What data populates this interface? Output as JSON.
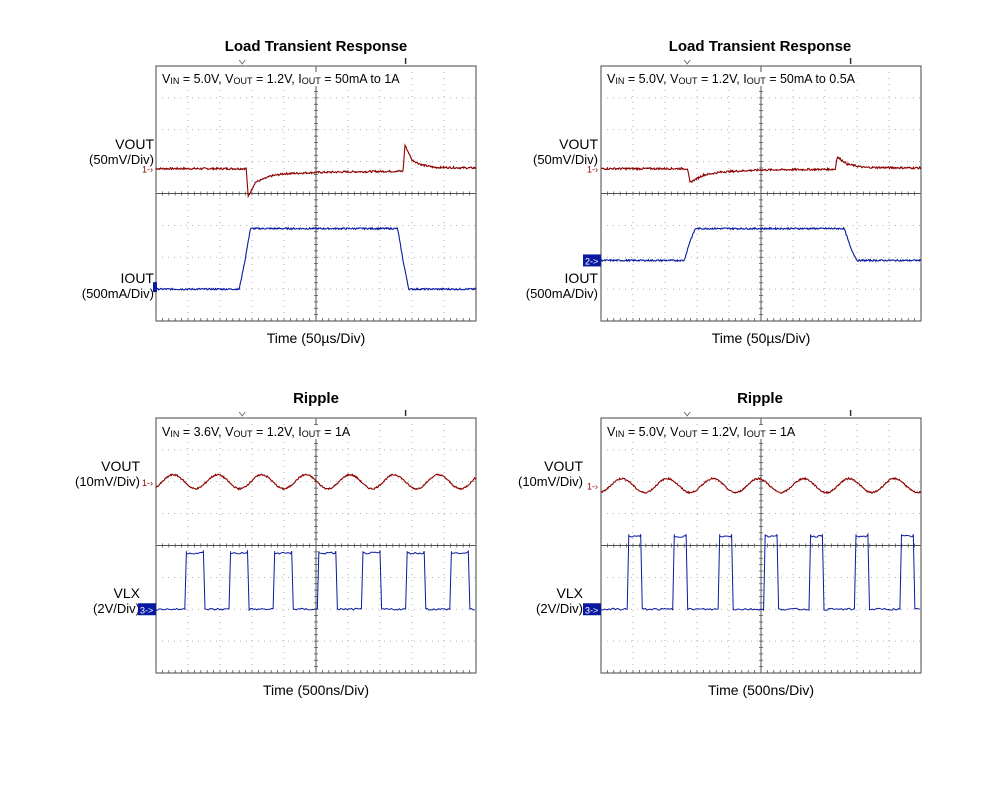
{
  "chart_data": [
    {
      "type": "line",
      "title": "Load Transient Response",
      "xlabel": "Time (50µs/Div)",
      "conditions": {
        "vin": "5.0V",
        "vout": "1.2V",
        "iout": "50mA to 1A"
      },
      "channels": [
        {
          "name": "VOUT",
          "scale": "(50mV/Div)",
          "marker": "1",
          "color": "#8b0000"
        },
        {
          "name": "IOUT",
          "scale": "(500mA/Div)",
          "marker": "",
          "color": "#0a1aa0"
        }
      ],
      "series": [
        {
          "name": "VOUT",
          "channel": 0,
          "x": [
            0,
            2.7,
            2.82,
            2.88,
            3.1,
            3.6,
            4,
            5,
            6,
            7.6,
            7.72,
            7.78,
            8.0,
            8.3,
            8.7,
            10
          ],
          "y": [
            4.78,
            4.78,
            4.78,
            3.9,
            4.35,
            4.55,
            4.62,
            4.66,
            4.68,
            4.7,
            4.7,
            5.52,
            5.05,
            4.9,
            4.82,
            4.8
          ]
        },
        {
          "name": "IOUT",
          "channel": 1,
          "x": [
            0,
            2.6,
            2.78,
            2.95,
            7.55,
            7.72,
            7.9,
            10
          ],
          "y": [
            1.0,
            1.0,
            1.9,
            2.9,
            2.9,
            1.9,
            1.0,
            1.0
          ]
        }
      ]
    },
    {
      "type": "line",
      "title": "Load Transient Response",
      "xlabel": "Time (50µs/Div)",
      "conditions": {
        "vin": "5.0V",
        "vout": "1.2V",
        "iout": "50mA to 0.5A"
      },
      "channels": [
        {
          "name": "VOUT",
          "scale": "(50mV/Div)",
          "marker": "1",
          "color": "#8b0000"
        },
        {
          "name": "IOUT",
          "scale": "(500mA/Div)",
          "marker": "2",
          "color": "#0a1aa0"
        }
      ],
      "series": [
        {
          "name": "VOUT",
          "channel": 0,
          "x": [
            0,
            2.6,
            2.7,
            2.78,
            3.2,
            3.8,
            5,
            7.2,
            7.32,
            7.38,
            7.7,
            8.2,
            10
          ],
          "y": [
            4.78,
            4.78,
            4.78,
            4.35,
            4.58,
            4.68,
            4.74,
            4.76,
            4.76,
            5.15,
            4.92,
            4.82,
            4.8
          ]
        },
        {
          "name": "IOUT",
          "channel": 1,
          "x": [
            0,
            2.6,
            2.78,
            2.95,
            7.6,
            7.8,
            8.0,
            10
          ],
          "y": [
            1.9,
            1.9,
            2.5,
            2.9,
            2.9,
            2.3,
            1.9,
            1.9
          ]
        }
      ]
    },
    {
      "type": "line",
      "title": "Ripple",
      "xlabel": "Time (500ns/Div)",
      "conditions": {
        "vin": "3.6V",
        "vout": "1.2V",
        "iout": "1A"
      },
      "channels": [
        {
          "name": "VOUT",
          "scale": "(10mV/Div)",
          "marker": "1",
          "color": "#8b0000"
        },
        {
          "name": "VLX",
          "scale": "(2V/Div)",
          "marker": "3",
          "color": "#0a1aa0"
        }
      ],
      "ripple": {
        "center": 6.0,
        "amplitude": 0.22,
        "period": 1.38,
        "phase": 0.2
      },
      "pulses": {
        "low": 2.0,
        "high": 3.82,
        "rise": [
          0.9,
          2.28,
          3.66,
          5.04,
          6.42,
          7.8,
          9.18
        ],
        "width": 0.58,
        "slope": 0.05
      }
    },
    {
      "type": "line",
      "title": "Ripple",
      "xlabel": "Time (500ns/Div)",
      "conditions": {
        "vin": "5.0V",
        "vout": "1.2V",
        "iout": "1A"
      },
      "channels": [
        {
          "name": "VOUT",
          "scale": "(10mV/Div)",
          "marker": "1",
          "color": "#8b0000"
        },
        {
          "name": "VLX",
          "scale": "(2V/Div)",
          "marker": "3",
          "color": "#0a1aa0"
        }
      ],
      "ripple": {
        "center": 5.88,
        "amplitude": 0.22,
        "period": 1.42,
        "phase": 0.3
      },
      "pulses": {
        "low": 2.0,
        "high": 4.35,
        "rise": [
          0.82,
          2.24,
          3.66,
          5.08,
          6.5,
          7.92,
          9.34
        ],
        "width": 0.42,
        "slope": 0.05
      }
    }
  ]
}
